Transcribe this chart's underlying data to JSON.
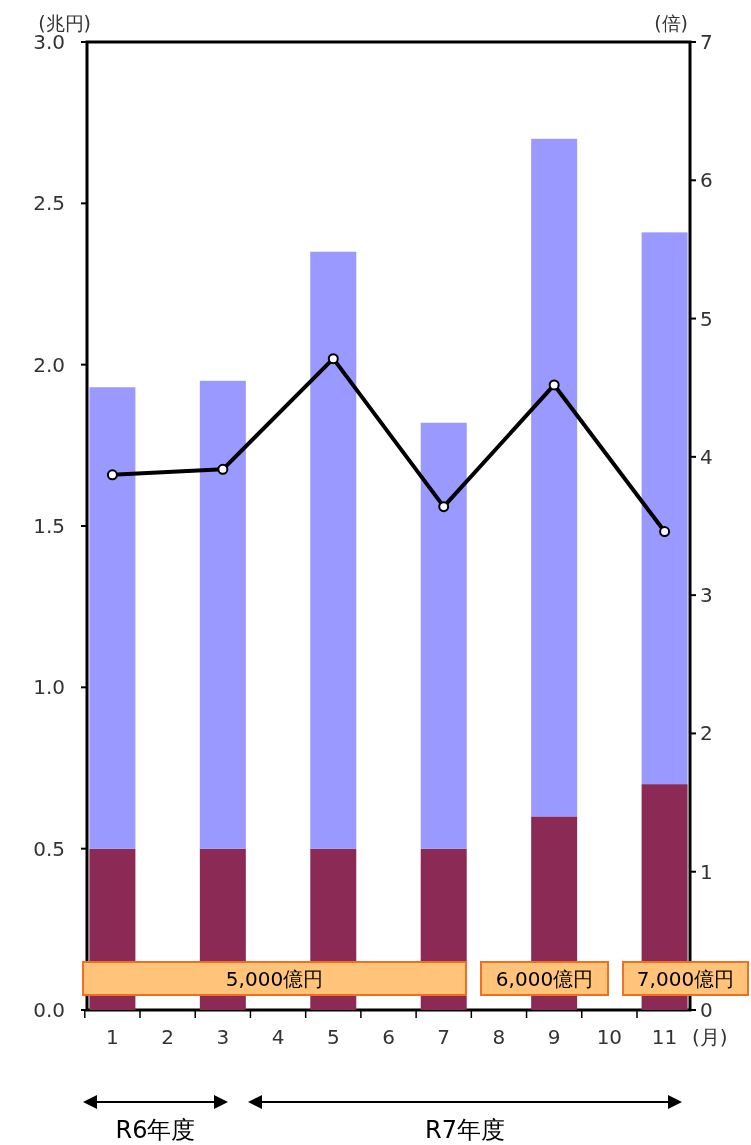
{
  "chart_data": {
    "type": "bar",
    "stacked": true,
    "xlabel": "(月)",
    "ylabel": "(兆円)",
    "y2label": "(倍)",
    "categories": [
      "1",
      "2",
      "3",
      "4",
      "5",
      "6",
      "7",
      "8",
      "9",
      "10",
      "11"
    ],
    "series": [
      {
        "color": "#8b2a55",
        "values": [
          0.5,
          null,
          0.5,
          null,
          0.5,
          null,
          0.5,
          null,
          0.6,
          null,
          0.7
        ]
      },
      {
        "color": "#9999ff",
        "values": [
          1.43,
          null,
          1.45,
          null,
          1.85,
          null,
          1.32,
          null,
          2.1,
          null,
          1.71
        ]
      },
      {
        "type": "line",
        "axis": "y2",
        "color": "#000000",
        "marker": "circle",
        "line_style": "solid",
        "values": [
          3.87,
          null,
          3.91,
          null,
          4.71,
          null,
          3.64,
          null,
          4.52,
          null,
          3.46
        ]
      }
    ],
    "ylim": [
      0,
      3
    ],
    "yticks": [
      {
        "value": 0,
        "label": "0.0"
      },
      {
        "value": 0.5,
        "label": "0.5"
      },
      {
        "value": 1,
        "label": "1.0"
      },
      {
        "value": 1.5,
        "label": "1.5"
      },
      {
        "value": 2,
        "label": "2.0"
      },
      {
        "value": 2.5,
        "label": "2.5"
      },
      {
        "value": 3,
        "label": "3.0"
      }
    ],
    "y2lim": [
      0,
      7
    ],
    "y2ticks": [
      0,
      1,
      2,
      3,
      4,
      5,
      6,
      7
    ],
    "grid": false,
    "annotations": [
      "5,000億円",
      "6,000億円",
      "7,000億円",
      "R6年度",
      "R7年度"
    ]
  }
}
